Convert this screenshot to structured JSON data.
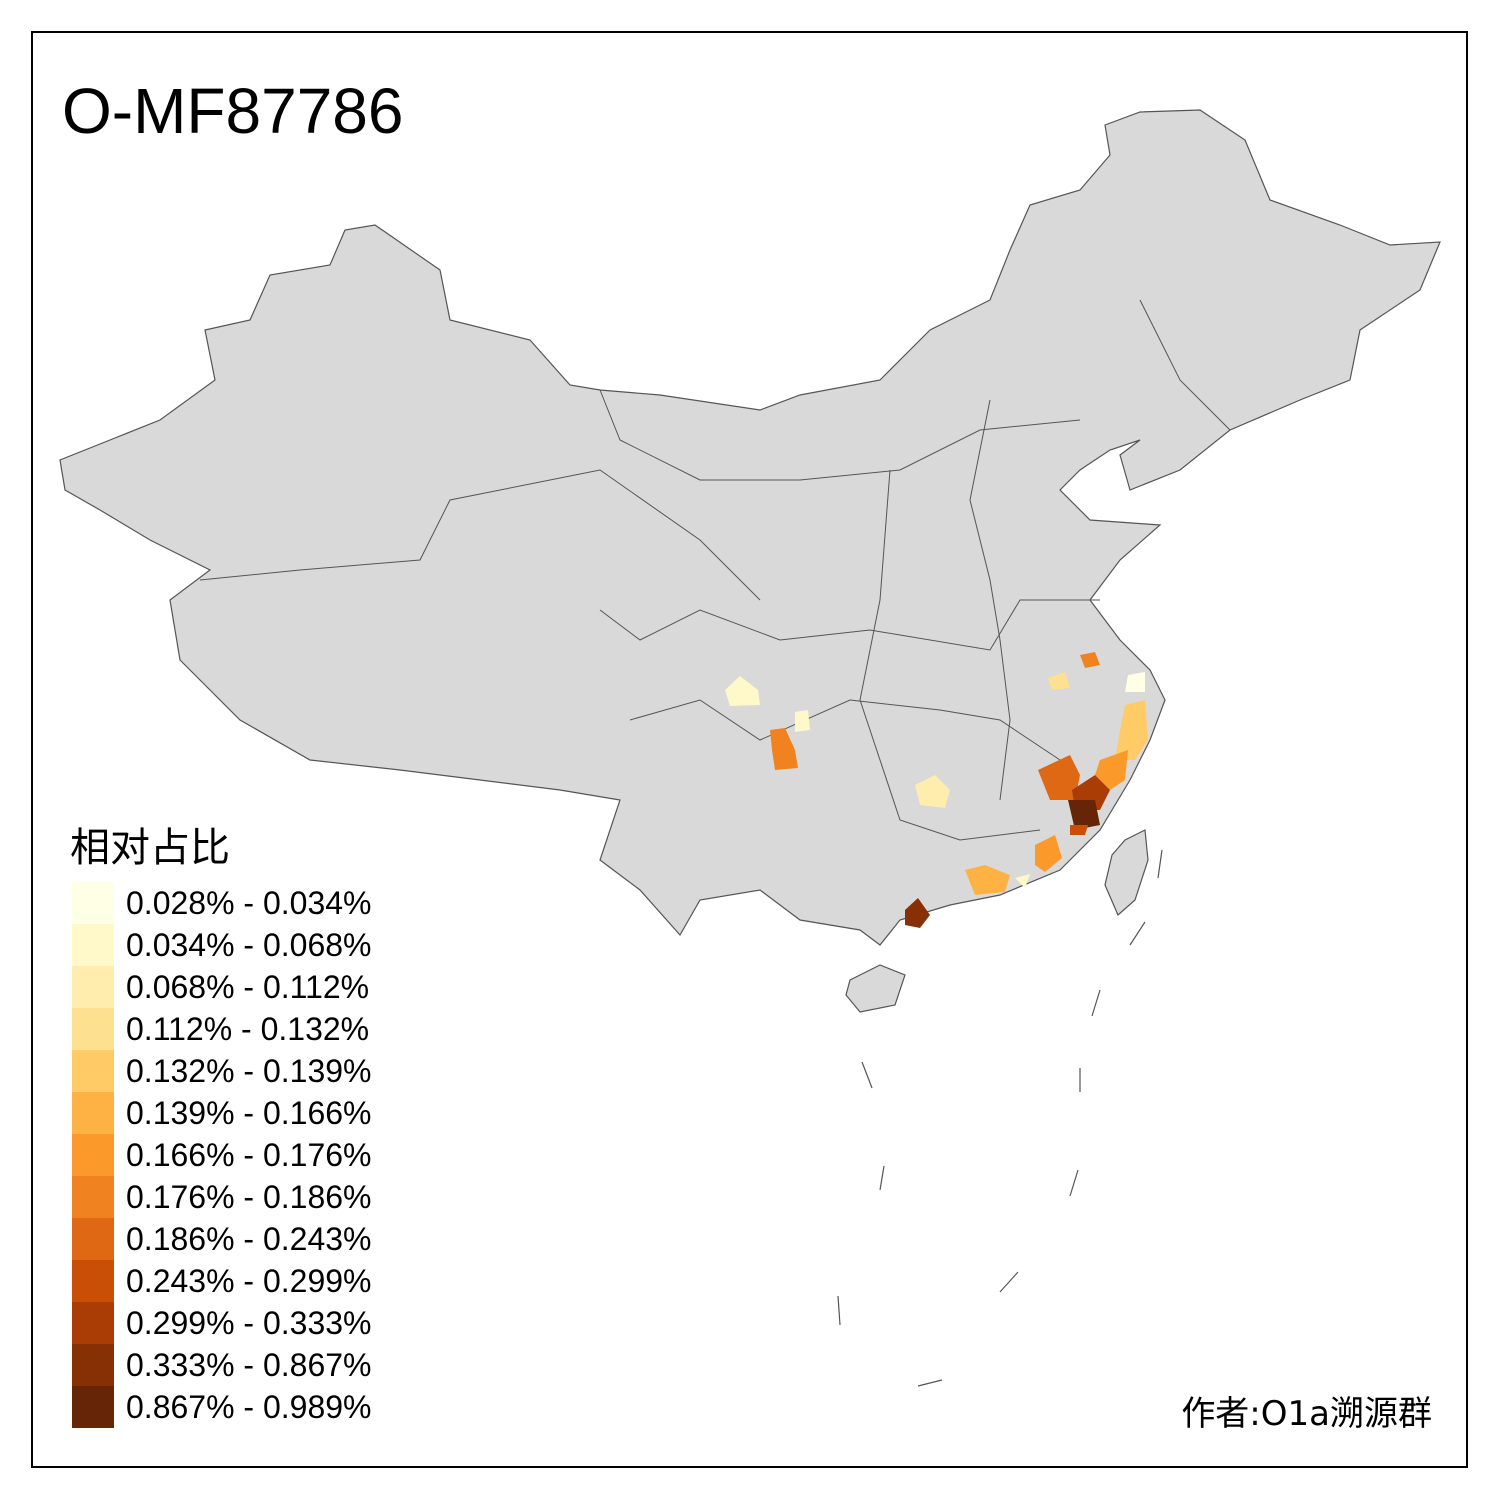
{
  "title": "O-MF87786",
  "legend": {
    "title": "相对占比",
    "items": [
      {
        "label": "0.028% - 0.034%",
        "color": "#FFFFE5"
      },
      {
        "label": "0.034% - 0.068%",
        "color": "#FFF8C8"
      },
      {
        "label": "0.068% - 0.112%",
        "color": "#FEEDAD"
      },
      {
        "label": "0.112% - 0.132%",
        "color": "#FEE091"
      },
      {
        "label": "0.132% - 0.139%",
        "color": "#FECB66"
      },
      {
        "label": "0.139% - 0.166%",
        "color": "#FEB244"
      },
      {
        "label": "0.166% - 0.176%",
        "color": "#FB9A2A"
      },
      {
        "label": "0.176% - 0.186%",
        "color": "#F08220"
      },
      {
        "label": "0.186% - 0.243%",
        "color": "#DE6814"
      },
      {
        "label": "0.243% - 0.299%",
        "color": "#CA4F06"
      },
      {
        "label": "0.299% - 0.333%",
        "color": "#A93D05"
      },
      {
        "label": "0.333% - 0.867%",
        "color": "#873005"
      },
      {
        "label": "0.867% - 0.989%",
        "color": "#662506"
      }
    ]
  },
  "author": "作者:O1a溯源群",
  "colors": {
    "base_region": "#D9D9D9",
    "border": "#555555"
  }
}
